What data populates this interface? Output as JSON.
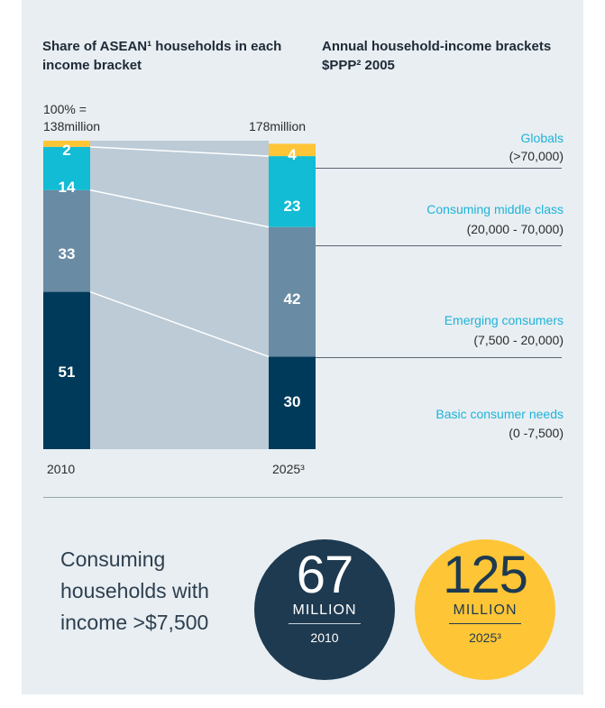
{
  "chart_data": {
    "type": "bar",
    "subtype": "stacked-100",
    "title_left": "Share of ASEAN¹ households in each income bracket",
    "title_right": "Annual household-income brackets $PPP² 2005",
    "total_label_1": "100% =",
    "total_label_2010": "138million",
    "total_label_2025": "178million",
    "categories": [
      "2010",
      "2025³"
    ],
    "series": [
      {
        "name": "Basic consumer needs",
        "range": "(0 -7,500)",
        "values": [
          51,
          30
        ],
        "color": "#003a5a"
      },
      {
        "name": "Emerging consumers",
        "range": "(7,500 - 20,000)",
        "values": [
          33,
          42
        ],
        "color": "#6a8ba4"
      },
      {
        "name": "Consuming middle class",
        "range": "(20,000 - 70,000)",
        "values": [
          14,
          23
        ],
        "color": "#11bcd4"
      },
      {
        "name": "Globals",
        "range": "(>70,000)",
        "values": [
          2,
          4
        ],
        "color": "#fec536"
      }
    ]
  },
  "bottom": {
    "text": "Consuming households with income >$7,500",
    "circle_2010": {
      "value": "67",
      "unit": "MILLION",
      "year": "2010"
    },
    "circle_2025": {
      "value": "125",
      "unit": "MILLION",
      "year": "2025³"
    }
  }
}
